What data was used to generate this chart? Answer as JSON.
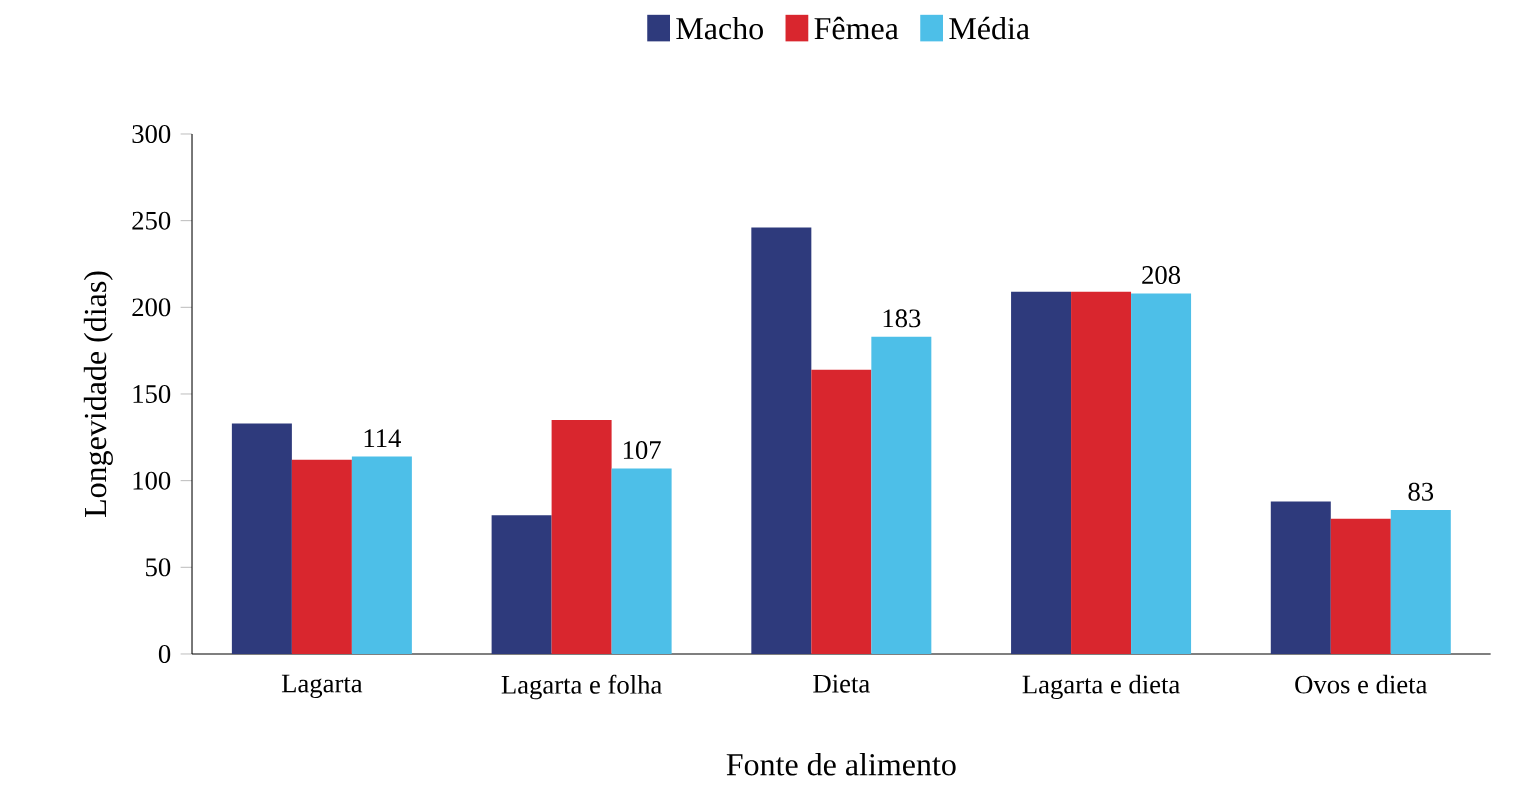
{
  "chart_data": {
    "type": "bar",
    "xlabel": "Fonte de alimento",
    "ylabel": "Longevidade (dias)",
    "categories": [
      "Lagarta",
      "Lagarta e folha",
      "Dieta",
      "Lagarta e dieta",
      "Ovos e dieta"
    ],
    "series": [
      {
        "name": "Macho",
        "color": "#2e3a7c",
        "values": [
          133,
          80,
          246,
          209,
          88
        ]
      },
      {
        "name": "Fêmea",
        "color": "#d9262e",
        "values": [
          112,
          135,
          164,
          209,
          78
        ]
      },
      {
        "name": "Média",
        "color": "#4dbfe8",
        "values": [
          114,
          107,
          183,
          208,
          83
        ],
        "value_labels": [
          "114",
          "107",
          "183",
          "208",
          "83"
        ]
      }
    ],
    "ylim": [
      0,
      300
    ],
    "yticks": [
      0,
      50,
      100,
      150,
      200,
      250,
      300
    ],
    "legend": "top",
    "grid": false
  }
}
